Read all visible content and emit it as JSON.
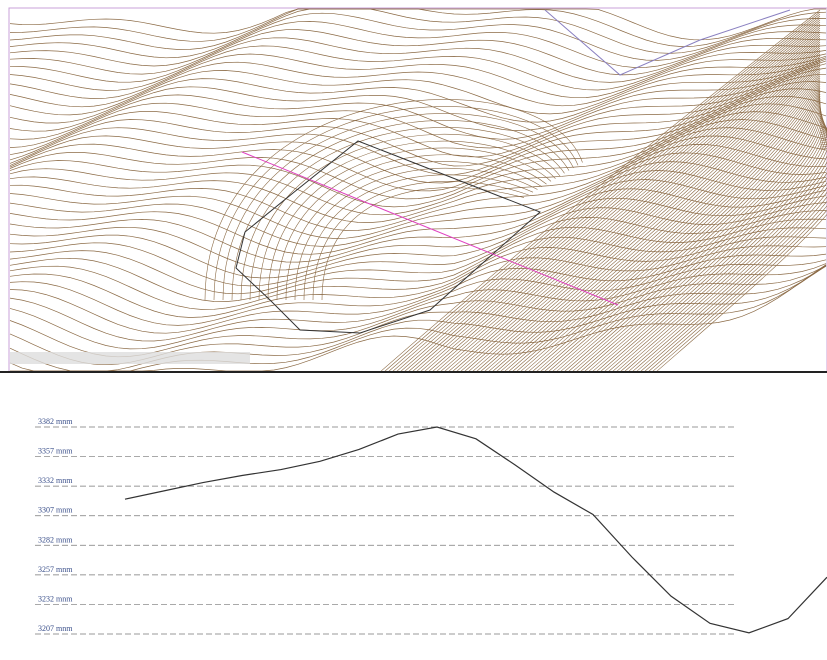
{
  "chart_data": {
    "type": "line",
    "categories": [
      null,
      null,
      null,
      null,
      null,
      null,
      null,
      null,
      null,
      null,
      null,
      null,
      null,
      null,
      null,
      null,
      null,
      null,
      null
    ],
    "series": [
      {
        "color": "#333333",
        "values": [
          3321,
          3328,
          3335,
          3341,
          3346,
          3353,
          3363,
          3376,
          3382,
          3372,
          3350,
          3327,
          3308,
          3272,
          3239,
          3216,
          3208,
          3220,
          3255
        ]
      }
    ],
    "ylim": [
      3207,
      3382
    ],
    "yticks": [
      {
        "value": 3382,
        "label": "3382 mnm"
      },
      {
        "value": 3357,
        "label": "3357 mnm"
      },
      {
        "value": 3332,
        "label": "3332 mnm"
      },
      {
        "value": 3307,
        "label": "3307 mnm"
      },
      {
        "value": 3282,
        "label": "3282 mnm"
      },
      {
        "value": 3257,
        "label": "3257 mnm"
      },
      {
        "value": 3232,
        "label": "3232 mnm"
      },
      {
        "value": 3207,
        "label": "3207 mnm"
      }
    ],
    "grid": true
  }
}
